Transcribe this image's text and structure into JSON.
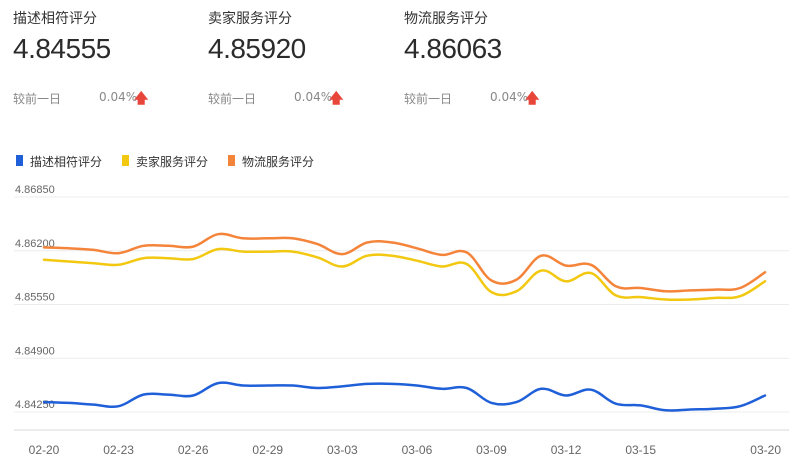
{
  "metrics": [
    {
      "label": "描述相符评分",
      "value": "4.84555",
      "compare_label": "较前一日",
      "change": "0.04%",
      "trend_icon": "arrow-up-icon"
    },
    {
      "label": "卖家服务评分",
      "value": "4.85920",
      "compare_label": "较前一日",
      "change": "0.04%",
      "trend_icon": "arrow-up-icon"
    },
    {
      "label": "物流服务评分",
      "value": "4.86063",
      "compare_label": "较前一日",
      "change": "0.04%",
      "trend_icon": "arrow-up-icon"
    }
  ],
  "chart_data": {
    "type": "line",
    "legend_position": "top-left",
    "grid": true,
    "ylim": [
      4.8425,
      4.8685
    ],
    "y_ticks": [
      "4.84250",
      "4.84900",
      "4.85550",
      "4.86200",
      "4.86850"
    ],
    "x_ticks": [
      "02-20",
      "02-23",
      "02-26",
      "02-29",
      "03-03",
      "03-06",
      "03-09",
      "03-12",
      "03-15",
      "03-20"
    ],
    "x": [
      "02-20",
      "02-21",
      "02-22",
      "02-23",
      "02-24",
      "02-25",
      "02-26",
      "02-27",
      "02-28",
      "02-29",
      "03-01",
      "03-02",
      "03-03",
      "03-04",
      "03-05",
      "03-06",
      "03-07",
      "03-08",
      "03-09",
      "03-10",
      "03-11",
      "03-12",
      "03-13",
      "03-14",
      "03-15",
      "03-16",
      "03-17",
      "03-18",
      "03-19",
      "03-20"
    ],
    "series": [
      {
        "name": "描述相符评分",
        "color": "#1f5fd8",
        "values": [
          4.8437,
          4.8436,
          4.8434,
          4.8432,
          4.8446,
          4.8446,
          4.8445,
          4.846,
          4.8457,
          4.8457,
          4.8457,
          4.8454,
          4.8456,
          4.8459,
          4.8459,
          4.8457,
          4.8453,
          4.8454,
          4.8436,
          4.8437,
          4.8453,
          4.8445,
          4.8452,
          4.8435,
          4.8433,
          4.8427,
          4.8428,
          4.8429,
          4.8432,
          4.8445
        ]
      },
      {
        "name": "卖家服务评分",
        "color": "#f2c811",
        "values": [
          4.8609,
          4.8607,
          4.8605,
          4.8603,
          4.8611,
          4.8611,
          4.861,
          4.8622,
          4.8619,
          4.8619,
          4.8619,
          4.8612,
          4.8601,
          4.8614,
          4.8614,
          4.8608,
          4.8601,
          4.8604,
          4.857,
          4.8571,
          4.8596,
          4.8583,
          4.8593,
          4.8566,
          4.8564,
          4.8561,
          4.8561,
          4.8563,
          4.8565,
          4.8583
        ]
      },
      {
        "name": "物流服务评分",
        "color": "#f5843b",
        "values": [
          4.8624,
          4.8623,
          4.8621,
          4.8617,
          4.8626,
          4.8626,
          4.8625,
          4.864,
          4.8635,
          4.8635,
          4.8635,
          4.8628,
          4.8616,
          4.863,
          4.863,
          4.8623,
          4.8615,
          4.8618,
          4.8584,
          4.8585,
          4.8614,
          4.8602,
          4.8603,
          4.8577,
          4.8575,
          4.8571,
          4.8572,
          4.8573,
          4.8575,
          4.8594
        ]
      }
    ]
  },
  "colors": {
    "up_arrow": "#e8463a",
    "grid": "#ececec",
    "axis": "#d8d8d8",
    "tick_text": "#666666"
  }
}
